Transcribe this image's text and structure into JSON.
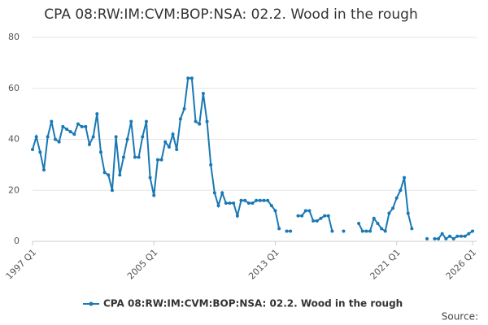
{
  "chart_data": {
    "type": "line",
    "title": "CPA 08:RW:IM:CVM:BOP:NSA: 02.2. Wood in the rough",
    "categories": [
      "1997 Q1",
      null,
      null,
      null,
      null,
      null,
      null,
      null,
      null,
      null,
      null,
      null,
      null,
      null,
      null,
      null,
      null,
      null,
      null,
      null,
      null,
      null,
      null,
      null,
      null,
      null,
      null,
      null,
      null,
      null,
      null,
      null,
      "2005 Q1",
      null,
      null,
      null,
      null,
      null,
      null,
      null,
      null,
      null,
      null,
      null,
      null,
      null,
      null,
      null,
      null,
      null,
      null,
      null,
      null,
      null,
      null,
      null,
      null,
      null,
      null,
      null,
      null,
      null,
      null,
      null,
      "2013 Q1",
      null,
      null,
      null,
      null,
      null,
      null,
      null,
      null,
      null,
      null,
      null,
      null,
      null,
      null,
      null,
      null,
      null,
      null,
      null,
      null,
      null,
      null,
      null,
      null,
      null,
      null,
      null,
      null,
      null,
      null,
      null,
      "2021 Q1",
      null,
      null,
      null,
      null,
      null,
      null,
      null,
      null,
      null,
      null,
      null,
      null,
      null,
      null,
      null,
      null,
      null,
      null,
      null,
      "2026 Q1"
    ],
    "series": [
      {
        "name": "CPA 08:RW:IM:CVM:BOP:NSA: 02.2. Wood in the rough",
        "color": "#1a78b4",
        "values": [
          36,
          41,
          35,
          28,
          41,
          47,
          40,
          39,
          45,
          44,
          43,
          42,
          46,
          45,
          45,
          38,
          41,
          50,
          35,
          27,
          26,
          20,
          41,
          26,
          33,
          40,
          47,
          33,
          33,
          41,
          47,
          25,
          18,
          32,
          32,
          39,
          37,
          42,
          36,
          48,
          52,
          64,
          64,
          47,
          46,
          58,
          47,
          30,
          19,
          14,
          19,
          15,
          15,
          15,
          10,
          16,
          16,
          15,
          15,
          16,
          16,
          16,
          16,
          14,
          12,
          5,
          null,
          4,
          4,
          null,
          10,
          10,
          12,
          12,
          8,
          8,
          9,
          10,
          10,
          4,
          null,
          null,
          4,
          null,
          null,
          null,
          7,
          4,
          4,
          4,
          9,
          7,
          5,
          4,
          11,
          13,
          17,
          20,
          25,
          11,
          5,
          null,
          null,
          null,
          1,
          null,
          1,
          1,
          3,
          1,
          2,
          1,
          2,
          2,
          2,
          3,
          4
        ]
      }
    ],
    "ylim": [
      0,
      80
    ],
    "yticks": [
      0,
      20,
      40,
      60,
      80
    ],
    "grid": true,
    "legend": "bottom",
    "source": "Source:"
  }
}
